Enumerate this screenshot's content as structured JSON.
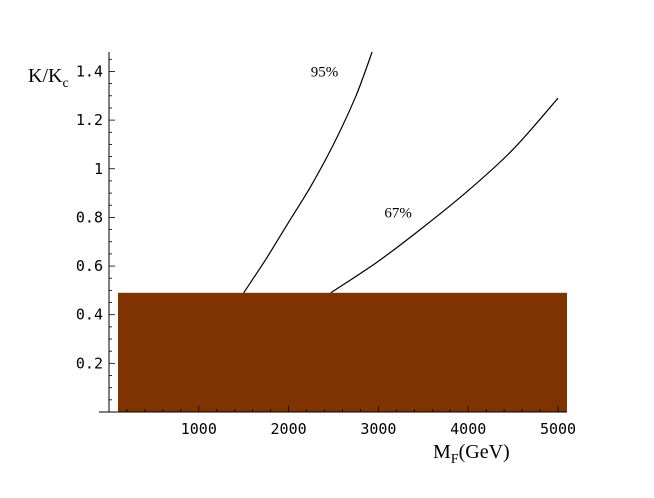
{
  "chart_data": {
    "type": "line",
    "title": "",
    "xlabel": {
      "main": "M",
      "sub": "F",
      "rest": "(GeV)"
    },
    "ylabel": {
      "main": "K/K",
      "sub": "c"
    },
    "xlim": [
      0,
      5100
    ],
    "ylim": [
      0,
      1.48
    ],
    "x_ticks": [
      1000,
      2000,
      3000,
      4000,
      5000
    ],
    "x_tick_labels": [
      "1000",
      "2000",
      "3000",
      "4000",
      "5000"
    ],
    "y_ticks": [
      0.2,
      0.4,
      0.6,
      0.8,
      1.0,
      1.2,
      1.4
    ],
    "y_tick_labels": [
      "0.2",
      "0.4",
      "0.6",
      "0.8",
      "1",
      "1.2",
      "1.4"
    ],
    "grid": false,
    "excluded_region": {
      "x": [
        100,
        5100
      ],
      "y": [
        0,
        0.49
      ],
      "color": "#7f3300"
    },
    "series": [
      {
        "name": "95%",
        "x": [
          1500,
          1750,
          2000,
          2250,
          2500,
          2750,
          2930
        ],
        "y": [
          0.49,
          0.63,
          0.78,
          0.93,
          1.1,
          1.3,
          1.48
        ]
      },
      {
        "name": "67%",
        "x": [
          2470,
          3000,
          3500,
          4000,
          4500,
          5000
        ],
        "y": [
          0.49,
          0.62,
          0.76,
          0.91,
          1.08,
          1.29
        ]
      }
    ],
    "annotations": [
      {
        "text": "95%",
        "x": 2400,
        "y": 1.38
      },
      {
        "text": "67%",
        "x": 3220,
        "y": 0.8
      }
    ]
  }
}
